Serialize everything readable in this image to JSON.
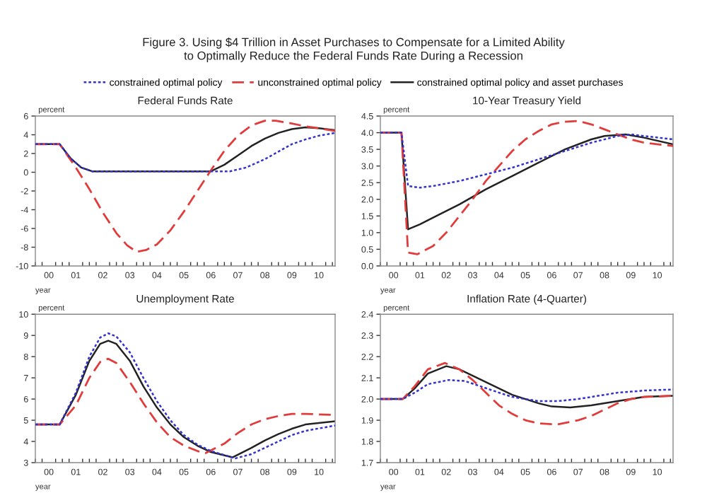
{
  "chart_data": [
    {
      "type": "line",
      "title": "Federal Funds Rate",
      "ylabel": "percent",
      "xlabel": "year",
      "legend": "top",
      "annotations": [
        "Figure 3. Using $4 Trillion in Asset Purchases to Compensate for a Limited Ability\nto Optimally Reduce the Federal Funds Rate During a Recession"
      ],
      "xlim": [
        0,
        11.1
      ],
      "xticks": [
        {
          "value": 0.5,
          "label": "00"
        },
        {
          "value": 1.5,
          "label": "01"
        },
        {
          "value": 2.5,
          "label": "02"
        },
        {
          "value": 3.5,
          "label": "03"
        },
        {
          "value": 4.5,
          "label": "04"
        },
        {
          "value": 5.5,
          "label": "05"
        },
        {
          "value": 6.5,
          "label": "06"
        },
        {
          "value": 7.5,
          "label": "07"
        },
        {
          "value": 8.5,
          "label": "08"
        },
        {
          "value": 9.5,
          "label": "09"
        },
        {
          "value": 10.5,
          "label": "10"
        }
      ],
      "ylim": [
        -10,
        6
      ],
      "yticks": [
        -10,
        -8,
        -6,
        -4,
        -2,
        0,
        2,
        4,
        6
      ],
      "grid": false,
      "series": [
        {
          "name": "constrained optimal policy",
          "color": "#3333cc",
          "line_style": "dotted",
          "x": [
            0,
            0.9,
            1.3,
            1.7,
            2.1,
            7.2,
            7.8,
            8.5,
            9,
            9.5,
            10,
            10.5,
            11.1
          ],
          "values": [
            3,
            3,
            1.5,
            0.5,
            0.1,
            0.1,
            0.5,
            1.4,
            2.2,
            3,
            3.5,
            3.9,
            4.2
          ]
        },
        {
          "name": "unconstrained optimal policy",
          "color": "#e03c3c",
          "line_style": "dashed",
          "x": [
            0,
            0.9,
            1.5,
            2,
            2.5,
            3,
            3.4,
            3.75,
            4.1,
            4.5,
            5,
            5.5,
            6,
            6.5,
            7,
            7.5,
            8,
            8.5,
            8.9,
            9.5,
            10,
            10.5,
            11.1
          ],
          "values": [
            3,
            3,
            0.5,
            -1.8,
            -4.3,
            -6.5,
            -7.8,
            -8.5,
            -8.3,
            -7.7,
            -6.2,
            -4.2,
            -2,
            0.2,
            2.3,
            3.9,
            5,
            5.5,
            5.5,
            5.2,
            4.9,
            4.7,
            4.4
          ]
        },
        {
          "name": "constrained optimal policy and asset purchases",
          "color": "#222222",
          "line_style": "solid",
          "x": [
            0,
            0.9,
            1.3,
            1.7,
            2.1,
            6.5,
            7,
            7.5,
            8,
            8.5,
            9,
            9.5,
            10,
            10.5,
            11.1
          ],
          "values": [
            3,
            3,
            1.5,
            0.5,
            0.1,
            0.1,
            0.8,
            1.8,
            2.8,
            3.6,
            4.2,
            4.6,
            4.8,
            4.7,
            4.5
          ]
        }
      ]
    },
    {
      "type": "line",
      "title": "10-Year Treasury Yield",
      "ylabel": "percent",
      "xlabel": "year",
      "xlim": [
        0,
        11.1
      ],
      "xticks": [
        {
          "value": 0.5,
          "label": "00"
        },
        {
          "value": 1.5,
          "label": "01"
        },
        {
          "value": 2.5,
          "label": "02"
        },
        {
          "value": 3.5,
          "label": "03"
        },
        {
          "value": 4.5,
          "label": "04"
        },
        {
          "value": 5.5,
          "label": "05"
        },
        {
          "value": 6.5,
          "label": "06"
        },
        {
          "value": 7.5,
          "label": "07"
        },
        {
          "value": 8.5,
          "label": "08"
        },
        {
          "value": 9.5,
          "label": "09"
        },
        {
          "value": 10.5,
          "label": "10"
        }
      ],
      "ylim": [
        0,
        4.5
      ],
      "yticks": [
        {
          "value": 0,
          "label": "0.0"
        },
        {
          "value": 0.5,
          "label": "0.5"
        },
        {
          "value": 1,
          "label": "1.0"
        },
        {
          "value": 1.5,
          "label": "1.5"
        },
        {
          "value": 2,
          "label": "2.0"
        },
        {
          "value": 2.5,
          "label": "2.5"
        },
        {
          "value": 3,
          "label": "3.0"
        },
        {
          "value": 3.5,
          "label": "3.5"
        },
        {
          "value": 4,
          "label": "4.0"
        },
        {
          "value": 4.5,
          "label": "4.5"
        }
      ],
      "grid": false,
      "series": [
        {
          "color": "#3333cc",
          "line_style": "dotted",
          "x": [
            0,
            0.8,
            1.05,
            1.5,
            2,
            3,
            4,
            5,
            6,
            7,
            8,
            9,
            9.5,
            10,
            11.1
          ],
          "values": [
            4,
            4,
            2.4,
            2.35,
            2.4,
            2.55,
            2.75,
            2.95,
            3.2,
            3.45,
            3.7,
            3.9,
            3.95,
            3.9,
            3.8
          ]
        },
        {
          "color": "#e03c3c",
          "line_style": "dashed",
          "x": [
            0,
            0.8,
            1.05,
            1.4,
            2,
            2.5,
            3,
            3.5,
            4,
            4.5,
            5,
            5.5,
            6,
            6.5,
            7,
            7.5,
            8,
            8.5,
            9,
            9.5,
            10,
            11.1
          ],
          "values": [
            4,
            4,
            0.4,
            0.35,
            0.6,
            1.0,
            1.5,
            2.0,
            2.55,
            3.0,
            3.45,
            3.8,
            4.05,
            4.25,
            4.33,
            4.35,
            4.25,
            4.1,
            3.95,
            3.8,
            3.7,
            3.6
          ]
        },
        {
          "color": "#222222",
          "line_style": "solid",
          "x": [
            0,
            0.8,
            1.05,
            1.5,
            2,
            3,
            4,
            5,
            6,
            7,
            8,
            8.5,
            9.3,
            10,
            11.1
          ],
          "values": [
            4,
            4,
            1.1,
            1.25,
            1.45,
            1.85,
            2.3,
            2.7,
            3.1,
            3.5,
            3.8,
            3.9,
            3.95,
            3.85,
            3.65
          ]
        }
      ]
    },
    {
      "type": "line",
      "title": "Unemployment Rate",
      "ylabel": "percent",
      "xlabel": "year",
      "xlim": [
        0,
        11.1
      ],
      "xticks": [
        {
          "value": 0.5,
          "label": "00"
        },
        {
          "value": 1.5,
          "label": "01"
        },
        {
          "value": 2.5,
          "label": "02"
        },
        {
          "value": 3.5,
          "label": "03"
        },
        {
          "value": 4.5,
          "label": "04"
        },
        {
          "value": 5.5,
          "label": "05"
        },
        {
          "value": 6.5,
          "label": "06"
        },
        {
          "value": 7.5,
          "label": "07"
        },
        {
          "value": 8.5,
          "label": "08"
        },
        {
          "value": 9.5,
          "label": "09"
        },
        {
          "value": 10.5,
          "label": "10"
        }
      ],
      "ylim": [
        3,
        10
      ],
      "yticks": [
        3,
        4,
        5,
        6,
        7,
        8,
        9,
        10
      ],
      "grid": false,
      "series": [
        {
          "color": "#3333cc",
          "line_style": "dotted",
          "x": [
            0,
            0.9,
            1.5,
            2,
            2.4,
            2.7,
            3,
            3.5,
            4,
            4.5,
            5,
            5.5,
            6,
            6.5,
            7.4,
            8,
            8.5,
            9,
            9.5,
            10,
            11.1
          ],
          "values": [
            4.8,
            4.8,
            6.3,
            8,
            8.9,
            9.1,
            8.95,
            8.2,
            7,
            5.9,
            5,
            4.3,
            3.85,
            3.55,
            3.2,
            3.4,
            3.7,
            4,
            4.3,
            4.5,
            4.75
          ]
        },
        {
          "color": "#e03c3c",
          "line_style": "dashed",
          "x": [
            0,
            0.9,
            1.5,
            2,
            2.4,
            2.7,
            3,
            3.5,
            4,
            4.5,
            5,
            5.5,
            6,
            6.3,
            7,
            7.5,
            8,
            8.5,
            9,
            9.5,
            10,
            11.1
          ],
          "values": [
            4.8,
            4.8,
            5.7,
            7,
            7.75,
            7.9,
            7.7,
            6.8,
            5.8,
            4.9,
            4.2,
            3.8,
            3.55,
            3.45,
            3.9,
            4.4,
            4.8,
            5.05,
            5.2,
            5.3,
            5.3,
            5.25
          ]
        },
        {
          "color": "#222222",
          "line_style": "solid",
          "x": [
            0,
            0.9,
            1.5,
            2,
            2.4,
            2.7,
            3,
            3.5,
            4,
            4.5,
            5,
            5.5,
            6,
            6.5,
            7.3,
            8,
            8.5,
            9,
            9.5,
            10,
            11.1
          ],
          "values": [
            4.8,
            4.8,
            6.2,
            7.8,
            8.6,
            8.75,
            8.6,
            7.8,
            6.6,
            5.6,
            4.8,
            4.2,
            3.8,
            3.5,
            3.25,
            3.7,
            4.05,
            4.35,
            4.6,
            4.8,
            4.95
          ]
        }
      ]
    },
    {
      "type": "line",
      "title": "Inflation Rate (4-Quarter)",
      "ylabel": "percent",
      "xlabel": "year",
      "xlim": [
        0,
        11.1
      ],
      "xticks": [
        {
          "value": 0.5,
          "label": "00"
        },
        {
          "value": 1.5,
          "label": "01"
        },
        {
          "value": 2.5,
          "label": "02"
        },
        {
          "value": 3.5,
          "label": "03"
        },
        {
          "value": 4.5,
          "label": "04"
        },
        {
          "value": 5.5,
          "label": "05"
        },
        {
          "value": 6.5,
          "label": "06"
        },
        {
          "value": 7.5,
          "label": "07"
        },
        {
          "value": 8.5,
          "label": "08"
        },
        {
          "value": 9.5,
          "label": "09"
        },
        {
          "value": 10.5,
          "label": "10"
        }
      ],
      "ylim": [
        1.7,
        2.4
      ],
      "yticks": [
        1.7,
        1.8,
        1.9,
        {
          "value": 2,
          "label": "2.0"
        },
        2.1,
        2.2,
        2.3,
        2.4
      ],
      "grid": false,
      "series": [
        {
          "color": "#3333cc",
          "line_style": "dotted",
          "x": [
            0,
            0.85,
            1.3,
            1.8,
            2.6,
            3.2,
            3.8,
            4.5,
            5,
            5.5,
            6,
            6.7,
            7.5,
            8,
            8.5,
            9,
            9.5,
            10,
            11.1
          ],
          "values": [
            2.0,
            2.0,
            2.03,
            2.07,
            2.09,
            2.085,
            2.06,
            2.03,
            2.01,
            2.0,
            1.99,
            1.99,
            2.0,
            2.01,
            2.02,
            2.03,
            2.035,
            2.04,
            2.045
          ]
        },
        {
          "color": "#e03c3c",
          "line_style": "dashed",
          "x": [
            0,
            0.85,
            1.3,
            1.8,
            2.45,
            3,
            3.5,
            4,
            4.5,
            5,
            5.5,
            6,
            6.7,
            7.5,
            8,
            8.5,
            9,
            9.5,
            10,
            11.1
          ],
          "values": [
            2.0,
            2.0,
            2.06,
            2.14,
            2.17,
            2.14,
            2.09,
            2.03,
            1.97,
            1.93,
            1.9,
            1.885,
            1.88,
            1.9,
            1.92,
            1.95,
            1.98,
            2.0,
            2.01,
            2.015
          ]
        },
        {
          "color": "#222222",
          "line_style": "solid",
          "x": [
            0,
            0.85,
            1.3,
            1.8,
            2.5,
            3,
            3.5,
            4,
            4.5,
            5,
            5.5,
            6,
            6.5,
            7.2,
            8,
            8.5,
            9,
            9.5,
            10,
            11.1
          ],
          "values": [
            2.0,
            2.0,
            2.05,
            2.12,
            2.155,
            2.14,
            2.11,
            2.08,
            2.05,
            2.02,
            2.0,
            1.98,
            1.965,
            1.96,
            1.97,
            1.98,
            1.99,
            2.0,
            2.01,
            2.015
          ]
        }
      ]
    }
  ]
}
